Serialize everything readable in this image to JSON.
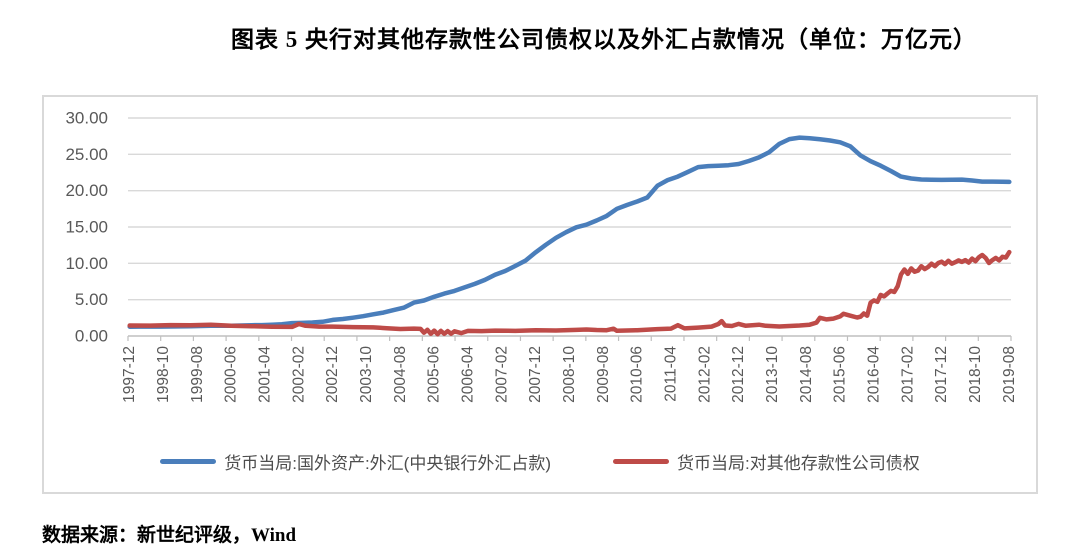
{
  "title": "图表 5  央行对其他存款性公司债权以及外汇占款情况（单位：万亿元）",
  "source": "数据来源：新世纪评级，Wind",
  "colors": {
    "series_fx_blue": "#4A7EBB",
    "series_claims_red": "#BE4B48",
    "gridline": "#D9D9D9",
    "axis": "#BFBFBF",
    "axis_label": "#595959"
  },
  "chart_data": {
    "type": "line",
    "title": "央行对其他存款性公司债权以及外汇占款情况",
    "unit": "万亿元",
    "ylim": [
      0,
      30
    ],
    "ytick_step": 5,
    "ytick_labels": [
      "0.00",
      "5.00",
      "10.00",
      "15.00",
      "20.00",
      "25.00",
      "30.00"
    ],
    "xtick_labels": [
      "1997-12",
      "1998-10",
      "1999-08",
      "2000-06",
      "2001-04",
      "2002-02",
      "2002-12",
      "2003-10",
      "2004-08",
      "2005-06",
      "2006-04",
      "2007-02",
      "2007-12",
      "2008-10",
      "2009-08",
      "2010-06",
      "2011-04",
      "2012-02",
      "2012-12",
      "2013-10",
      "2014-08",
      "2015-06",
      "2016-04",
      "2017-02",
      "2017-12",
      "2018-10",
      "2019-08"
    ],
    "x_start": "1997-12",
    "x_end": "2019-08",
    "grid": true,
    "legend_position": "bottom",
    "series": [
      {
        "name": "货币当局:国外资产:外汇(中央银行外汇占款)",
        "color": "#4A7EBB",
        "points": [
          [
            "1997-12",
            1.28
          ],
          [
            "1998-03",
            1.29
          ],
          [
            "1998-06",
            1.3
          ],
          [
            "1998-09",
            1.3
          ],
          [
            "1998-12",
            1.31
          ],
          [
            "1999-03",
            1.32
          ],
          [
            "1999-06",
            1.34
          ],
          [
            "1999-09",
            1.37
          ],
          [
            "1999-12",
            1.41
          ],
          [
            "2000-03",
            1.42
          ],
          [
            "2000-06",
            1.42
          ],
          [
            "2000-09",
            1.44
          ],
          [
            "2000-12",
            1.48
          ],
          [
            "2001-03",
            1.5
          ],
          [
            "2001-06",
            1.55
          ],
          [
            "2001-09",
            1.63
          ],
          [
            "2001-12",
            1.77
          ],
          [
            "2002-03",
            1.8
          ],
          [
            "2002-06",
            1.86
          ],
          [
            "2002-09",
            1.96
          ],
          [
            "2002-12",
            2.21
          ],
          [
            "2003-03",
            2.34
          ],
          [
            "2003-06",
            2.52
          ],
          [
            "2003-09",
            2.72
          ],
          [
            "2003-12",
            2.98
          ],
          [
            "2004-03",
            3.22
          ],
          [
            "2004-06",
            3.57
          ],
          [
            "2004-09",
            3.89
          ],
          [
            "2004-12",
            4.59
          ],
          [
            "2005-03",
            4.88
          ],
          [
            "2005-06",
            5.39
          ],
          [
            "2005-09",
            5.84
          ],
          [
            "2005-12",
            6.21
          ],
          [
            "2006-03",
            6.69
          ],
          [
            "2006-06",
            7.17
          ],
          [
            "2006-09",
            7.72
          ],
          [
            "2006-12",
            8.44
          ],
          [
            "2007-03",
            8.94
          ],
          [
            "2007-06",
            9.64
          ],
          [
            "2007-09",
            10.38
          ],
          [
            "2007-12",
            11.52
          ],
          [
            "2008-03",
            12.55
          ],
          [
            "2008-06",
            13.52
          ],
          [
            "2008-09",
            14.29
          ],
          [
            "2008-12",
            14.96
          ],
          [
            "2009-03",
            15.32
          ],
          [
            "2009-06",
            15.9
          ],
          [
            "2009-09",
            16.53
          ],
          [
            "2009-12",
            17.51
          ],
          [
            "2010-03",
            18.03
          ],
          [
            "2010-06",
            18.51
          ],
          [
            "2010-09",
            19.06
          ],
          [
            "2010-12",
            20.68
          ],
          [
            "2011-03",
            21.45
          ],
          [
            "2011-06",
            21.94
          ],
          [
            "2011-09",
            22.58
          ],
          [
            "2011-12",
            23.24
          ],
          [
            "2012-03",
            23.38
          ],
          [
            "2012-06",
            23.44
          ],
          [
            "2012-09",
            23.51
          ],
          [
            "2012-12",
            23.67
          ],
          [
            "2013-03",
            24.08
          ],
          [
            "2013-06",
            24.58
          ],
          [
            "2013-09",
            25.29
          ],
          [
            "2013-12",
            26.43
          ],
          [
            "2014-03",
            27.1
          ],
          [
            "2014-06",
            27.3
          ],
          [
            "2014-09",
            27.21
          ],
          [
            "2014-12",
            27.07
          ],
          [
            "2015-03",
            26.9
          ],
          [
            "2015-06",
            26.66
          ],
          [
            "2015-09",
            26.1
          ],
          [
            "2015-12",
            24.85
          ],
          [
            "2016-03",
            24.05
          ],
          [
            "2016-06",
            23.43
          ],
          [
            "2016-09",
            22.7
          ],
          [
            "2016-12",
            21.94
          ],
          [
            "2017-03",
            21.68
          ],
          [
            "2017-06",
            21.53
          ],
          [
            "2017-09",
            21.51
          ],
          [
            "2017-12",
            21.48
          ],
          [
            "2018-03",
            21.5
          ],
          [
            "2018-06",
            21.52
          ],
          [
            "2018-09",
            21.4
          ],
          [
            "2018-12",
            21.25
          ],
          [
            "2019-03",
            21.25
          ],
          [
            "2019-06",
            21.23
          ],
          [
            "2019-08",
            21.2
          ]
        ]
      },
      {
        "name": "货币当局:对其他存款性公司债权",
        "color": "#BE4B48",
        "points": [
          [
            "1997-12",
            1.44
          ],
          [
            "1998-06",
            1.43
          ],
          [
            "1998-12",
            1.5
          ],
          [
            "1999-06",
            1.47
          ],
          [
            "1999-12",
            1.54
          ],
          [
            "2000-06",
            1.4
          ],
          [
            "2000-12",
            1.35
          ],
          [
            "2001-06",
            1.28
          ],
          [
            "2001-12",
            1.25
          ],
          [
            "2002-02",
            1.65
          ],
          [
            "2002-04",
            1.4
          ],
          [
            "2002-08",
            1.3
          ],
          [
            "2002-12",
            1.3
          ],
          [
            "2003-06",
            1.22
          ],
          [
            "2003-12",
            1.18
          ],
          [
            "2004-04",
            1.08
          ],
          [
            "2004-08",
            0.96
          ],
          [
            "2004-12",
            1.02
          ],
          [
            "2005-02",
            0.98
          ],
          [
            "2005-03",
            0.45
          ],
          [
            "2005-04",
            0.85
          ],
          [
            "2005-05",
            0.3
          ],
          [
            "2005-06",
            0.75
          ],
          [
            "2005-07",
            0.25
          ],
          [
            "2005-08",
            0.7
          ],
          [
            "2005-09",
            0.3
          ],
          [
            "2005-10",
            0.68
          ],
          [
            "2005-11",
            0.32
          ],
          [
            "2005-12",
            0.65
          ],
          [
            "2006-02",
            0.4
          ],
          [
            "2006-04",
            0.7
          ],
          [
            "2006-08",
            0.68
          ],
          [
            "2006-12",
            0.74
          ],
          [
            "2007-06",
            0.7
          ],
          [
            "2007-12",
            0.79
          ],
          [
            "2008-06",
            0.76
          ],
          [
            "2008-12",
            0.84
          ],
          [
            "2009-03",
            0.9
          ],
          [
            "2009-06",
            0.82
          ],
          [
            "2009-09",
            0.8
          ],
          [
            "2009-11",
            1.0
          ],
          [
            "2009-12",
            0.72
          ],
          [
            "2010-06",
            0.8
          ],
          [
            "2010-12",
            0.95
          ],
          [
            "2011-04",
            1.02
          ],
          [
            "2011-06",
            1.48
          ],
          [
            "2011-08",
            1.05
          ],
          [
            "2011-12",
            1.15
          ],
          [
            "2012-04",
            1.3
          ],
          [
            "2012-06",
            1.65
          ],
          [
            "2012-07",
            2.05
          ],
          [
            "2012-08",
            1.45
          ],
          [
            "2012-10",
            1.38
          ],
          [
            "2012-12",
            1.67
          ],
          [
            "2013-02",
            1.42
          ],
          [
            "2013-06",
            1.55
          ],
          [
            "2013-08",
            1.4
          ],
          [
            "2013-12",
            1.31
          ],
          [
            "2014-03",
            1.38
          ],
          [
            "2014-06",
            1.45
          ],
          [
            "2014-09",
            1.55
          ],
          [
            "2014-11",
            1.85
          ],
          [
            "2014-12",
            2.5
          ],
          [
            "2015-02",
            2.28
          ],
          [
            "2015-04",
            2.4
          ],
          [
            "2015-06",
            2.7
          ],
          [
            "2015-07",
            3.05
          ],
          [
            "2015-09",
            2.8
          ],
          [
            "2015-11",
            2.55
          ],
          [
            "2015-12",
            2.66
          ],
          [
            "2016-01",
            3.1
          ],
          [
            "2016-02",
            2.8
          ],
          [
            "2016-03",
            4.6
          ],
          [
            "2016-04",
            4.9
          ],
          [
            "2016-05",
            4.7
          ],
          [
            "2016-06",
            5.65
          ],
          [
            "2016-07",
            5.45
          ],
          [
            "2016-08",
            5.85
          ],
          [
            "2016-09",
            6.2
          ],
          [
            "2016-10",
            6.05
          ],
          [
            "2016-11",
            6.85
          ],
          [
            "2016-12",
            8.47
          ],
          [
            "2017-01",
            9.15
          ],
          [
            "2017-02",
            8.55
          ],
          [
            "2017-03",
            9.3
          ],
          [
            "2017-04",
            8.85
          ],
          [
            "2017-05",
            9.0
          ],
          [
            "2017-06",
            9.6
          ],
          [
            "2017-07",
            9.2
          ],
          [
            "2017-08",
            9.5
          ],
          [
            "2017-09",
            9.95
          ],
          [
            "2017-10",
            9.6
          ],
          [
            "2017-11",
            10.05
          ],
          [
            "2017-12",
            10.22
          ],
          [
            "2018-01",
            9.9
          ],
          [
            "2018-02",
            10.35
          ],
          [
            "2018-03",
            9.95
          ],
          [
            "2018-04",
            10.15
          ],
          [
            "2018-05",
            10.4
          ],
          [
            "2018-06",
            10.2
          ],
          [
            "2018-07",
            10.45
          ],
          [
            "2018-08",
            10.1
          ],
          [
            "2018-09",
            10.65
          ],
          [
            "2018-10",
            10.3
          ],
          [
            "2018-11",
            10.85
          ],
          [
            "2018-12",
            11.15
          ],
          [
            "2019-01",
            10.75
          ],
          [
            "2019-02",
            10.05
          ],
          [
            "2019-03",
            10.45
          ],
          [
            "2019-04",
            10.75
          ],
          [
            "2019-05",
            10.4
          ],
          [
            "2019-06",
            10.9
          ],
          [
            "2019-07",
            10.8
          ],
          [
            "2019-08",
            11.55
          ]
        ]
      }
    ]
  }
}
